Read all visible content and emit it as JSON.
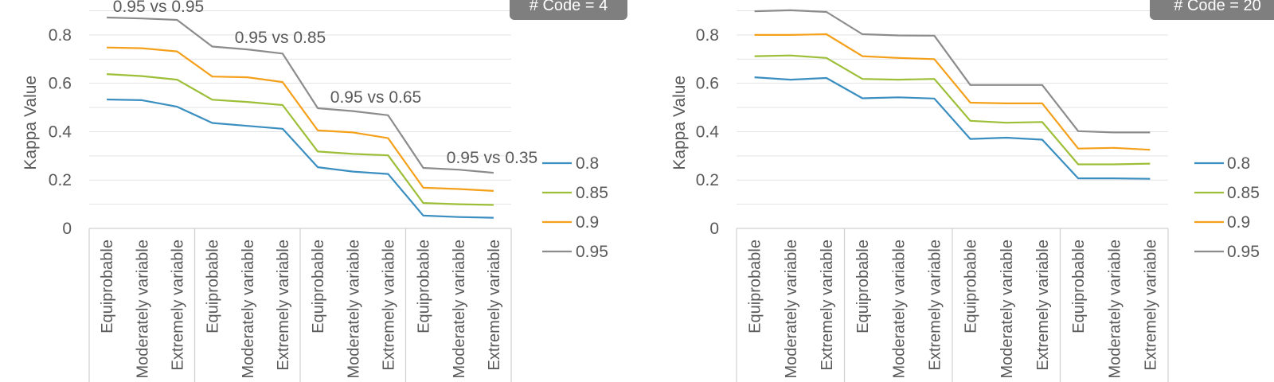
{
  "chart_data": [
    {
      "type": "line",
      "panel_label": "# Code = 4",
      "ylabel": "Kappa Value",
      "ylim": [
        0,
        0.9
      ],
      "yticks": [
        0,
        0.2,
        0.4,
        0.6,
        0.8
      ],
      "yticks_labels": [
        "0",
        "0.2",
        "0.4",
        "0.6",
        "0.8"
      ],
      "grid": true,
      "legend_position": "right",
      "categories": [
        "Equiprobable",
        "Moderately variable",
        "Extremely variable",
        "Equiprobable",
        "Moderately variable",
        "Extremely variable",
        "Equiprobable",
        "Moderately variable",
        "Extremely variable",
        "Equiprobable",
        "Moderately variable",
        "Extremely variable"
      ],
      "group_labels": [
        "0.95 vs 0.95",
        "0.95 vs 0.85",
        "0.95 vs 0.65",
        "0.95 vs 0.35"
      ],
      "series": [
        {
          "name": "0.8",
          "color": "#3a8ec0",
          "values": [
            0.533,
            0.53,
            0.503,
            0.436,
            0.424,
            0.412,
            0.253,
            0.235,
            0.225,
            0.053,
            0.047,
            0.044
          ]
        },
        {
          "name": "0.85",
          "color": "#9dbf38",
          "values": [
            0.638,
            0.63,
            0.615,
            0.532,
            0.523,
            0.51,
            0.318,
            0.308,
            0.302,
            0.105,
            0.1,
            0.097
          ]
        },
        {
          "name": "0.9",
          "color": "#f5a01a",
          "values": [
            0.748,
            0.745,
            0.732,
            0.628,
            0.625,
            0.605,
            0.405,
            0.397,
            0.373,
            0.168,
            0.163,
            0.155
          ]
        },
        {
          "name": "0.95",
          "color": "#8c8c8c",
          "values": [
            0.872,
            0.868,
            0.862,
            0.752,
            0.74,
            0.723,
            0.497,
            0.485,
            0.468,
            0.25,
            0.243,
            0.23
          ]
        }
      ]
    },
    {
      "type": "line",
      "panel_label": "# Code = 20",
      "ylabel": "Kappa Value",
      "ylim": [
        0,
        0.9
      ],
      "yticks": [
        0,
        0.2,
        0.4,
        0.6,
        0.8
      ],
      "yticks_labels": [
        "0",
        "0.2",
        "0.4",
        "0.6",
        "0.8"
      ],
      "grid": true,
      "legend_position": "right",
      "categories": [
        "Equiprobable",
        "Moderately variable",
        "Extremely variable",
        "Equiprobable",
        "Moderately variable",
        "Extremely variable",
        "Equiprobable",
        "Moderately variable",
        "Extremely variable",
        "Equiprobable",
        "Moderately variable",
        "Extremely variable"
      ],
      "series": [
        {
          "name": "0.8",
          "color": "#3a8ec0",
          "values": [
            0.625,
            0.615,
            0.622,
            0.538,
            0.542,
            0.537,
            0.37,
            0.375,
            0.367,
            0.207,
            0.207,
            0.205
          ]
        },
        {
          "name": "0.85",
          "color": "#9dbf38",
          "values": [
            0.712,
            0.715,
            0.705,
            0.618,
            0.615,
            0.618,
            0.445,
            0.437,
            0.44,
            0.265,
            0.265,
            0.268
          ]
        },
        {
          "name": "0.9",
          "color": "#f5a01a",
          "values": [
            0.8,
            0.8,
            0.803,
            0.712,
            0.705,
            0.7,
            0.52,
            0.517,
            0.517,
            0.33,
            0.333,
            0.325
          ]
        },
        {
          "name": "0.95",
          "color": "#8c8c8c",
          "values": [
            0.898,
            0.902,
            0.895,
            0.803,
            0.798,
            0.797,
            0.593,
            0.593,
            0.593,
            0.402,
            0.397,
            0.397
          ]
        }
      ]
    }
  ]
}
